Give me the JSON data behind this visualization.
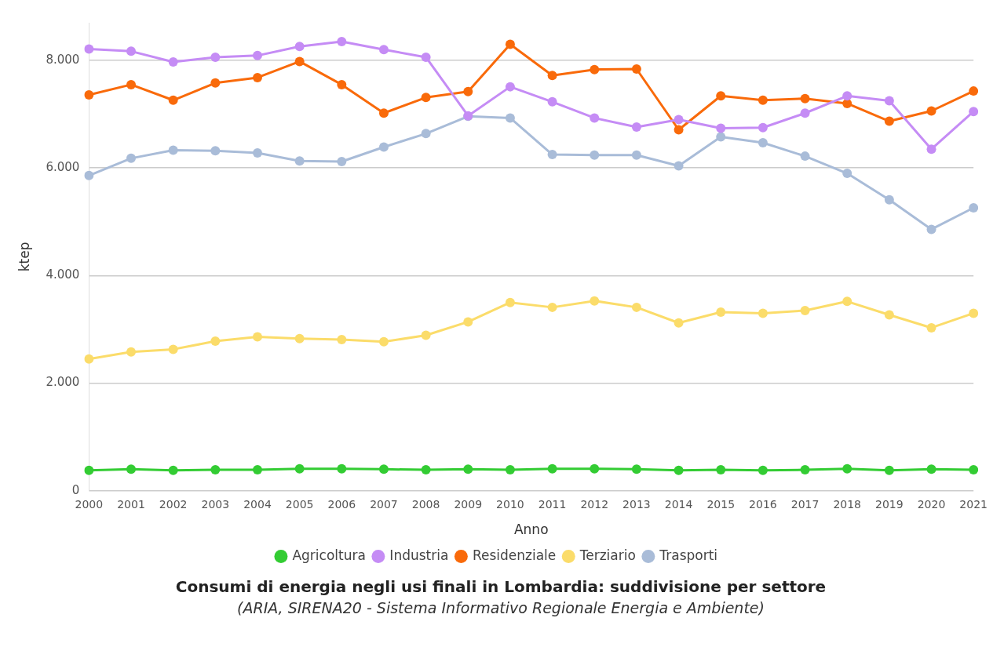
{
  "chart_data": {
    "type": "line",
    "title": "Consumi di energia negli usi finali in Lombardia: suddivisione per settore",
    "subtitle": "(ARIA, SIRENA20 - Sistema Informativo Regionale Energia e Ambiente)",
    "xlabel": "Anno",
    "ylabel": "ktep",
    "categories": [
      "2000",
      "2001",
      "2002",
      "2003",
      "2004",
      "2005",
      "2006",
      "2007",
      "2008",
      "2009",
      "2010",
      "2011",
      "2012",
      "2013",
      "2014",
      "2015",
      "2016",
      "2017",
      "2018",
      "2019",
      "2020",
      "2021"
    ],
    "series": [
      {
        "name": "Agricoltura",
        "color": "#33cc33",
        "values": [
          380,
          400,
          380,
          390,
          390,
          410,
          410,
          400,
          390,
          400,
          390,
          410,
          410,
          400,
          380,
          390,
          380,
          390,
          410,
          380,
          400,
          390
        ]
      },
      {
        "name": "Industria",
        "color": "#c58cf5",
        "values": [
          8210,
          8170,
          7970,
          8060,
          8090,
          8260,
          8350,
          8200,
          8060,
          6970,
          7510,
          7230,
          6930,
          6760,
          6900,
          6740,
          6750,
          7020,
          7340,
          7250,
          6350,
          7050
        ]
      },
      {
        "name": "Residenziale",
        "color": "#f96a0a",
        "values": [
          7360,
          7550,
          7260,
          7580,
          7680,
          7980,
          7550,
          7020,
          7310,
          7420,
          8300,
          7720,
          7830,
          7840,
          6710,
          7340,
          7260,
          7290,
          7200,
          6870,
          7060,
          7430
        ]
      },
      {
        "name": "Terziario",
        "color": "#fbdc6a",
        "values": [
          2450,
          2580,
          2630,
          2780,
          2860,
          2830,
          2810,
          2770,
          2890,
          3140,
          3500,
          3410,
          3530,
          3410,
          3120,
          3320,
          3300,
          3350,
          3520,
          3270,
          3030,
          3300
        ]
      },
      {
        "name": "Trasporti",
        "color": "#a9bcd8",
        "values": [
          5860,
          6180,
          6330,
          6320,
          6280,
          6130,
          6120,
          6390,
          6640,
          6960,
          6930,
          6250,
          6240,
          6240,
          6040,
          6580,
          6470,
          6220,
          5900,
          5410,
          4860,
          5260
        ]
      }
    ],
    "ylim": [
      0,
      8700
    ],
    "yticks": [
      0,
      {
        "value": 2000,
        "label": "2.000"
      },
      {
        "value": 4000,
        "label": "4.000"
      },
      {
        "value": 6000,
        "label": "6.000"
      },
      {
        "value": 8000,
        "label": "8.000"
      }
    ],
    "grid": "y",
    "legend": "bottom",
    "marker": "circle",
    "line_style": "solid"
  }
}
